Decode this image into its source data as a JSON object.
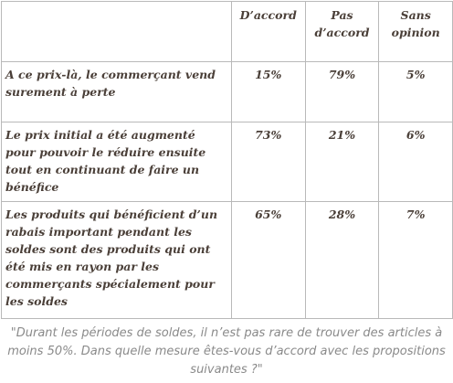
{
  "chart_data": {
    "type": "table",
    "columns": [
      "",
      "D’accord",
      "Pas d’accord",
      "Sans opinion"
    ],
    "rows": [
      {
        "statement": "A ce prix-là, le commerçant vend surement à perte",
        "values": [
          "15%",
          "79%",
          "5%"
        ]
      },
      {
        "statement": "Le prix initial a été augmenté pour pouvoir le réduire ensuite tout en continuant de faire un bénéfice",
        "values": [
          "73%",
          "21%",
          "6%"
        ]
      },
      {
        "statement": "Les produits qui bénéficient d’un rabais important pendant les soldes sont des produits qui ont été mis en rayon par les commerçants spécialement pour les soldes",
        "values": [
          "65%",
          "28%",
          "7%"
        ]
      }
    ],
    "caption": "\"Durant les périodes de soldes, il n’est pas rare de trouver des articles à moins 50%. Dans quelle mesure êtes-vous d’accord avec les propositions suivantes ?\""
  },
  "colors": {
    "text": "#4a3f38",
    "border": "#b9b9b9",
    "caption": "#8a8a8a"
  }
}
